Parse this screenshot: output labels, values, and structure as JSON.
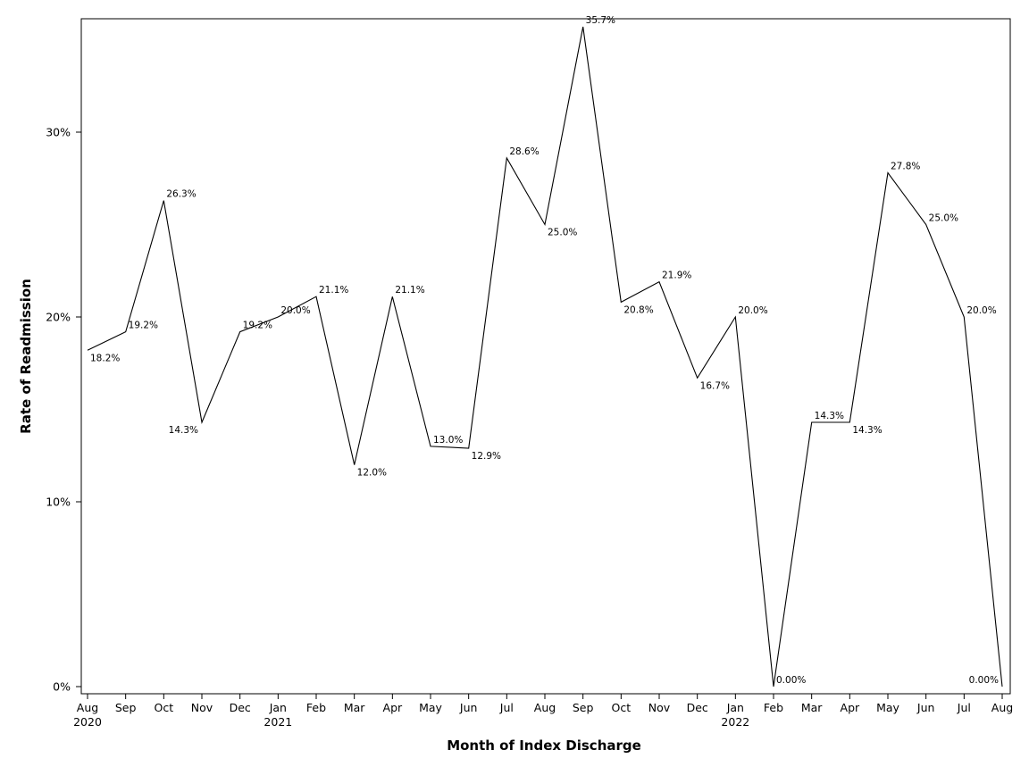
{
  "chart_data": {
    "type": "line",
    "xlabel": "Month of Index Discharge",
    "ylabel": "Rate of Readmission",
    "ylim": [
      0,
      36.5
    ],
    "yticks": [
      {
        "value": 0,
        "label": "0%"
      },
      {
        "value": 10,
        "label": "10%"
      },
      {
        "value": 20,
        "label": "20%"
      },
      {
        "value": 30,
        "label": "30%"
      }
    ],
    "grid": false,
    "legend": "none",
    "categories": [
      {
        "month": "Aug",
        "year": "2020"
      },
      {
        "month": "Sep",
        "year": ""
      },
      {
        "month": "Oct",
        "year": ""
      },
      {
        "month": "Nov",
        "year": ""
      },
      {
        "month": "Dec",
        "year": ""
      },
      {
        "month": "Jan",
        "year": "2021"
      },
      {
        "month": "Feb",
        "year": ""
      },
      {
        "month": "Mar",
        "year": ""
      },
      {
        "month": "Apr",
        "year": ""
      },
      {
        "month": "May",
        "year": ""
      },
      {
        "month": "Jun",
        "year": ""
      },
      {
        "month": "Jul",
        "year": ""
      },
      {
        "month": "Aug",
        "year": ""
      },
      {
        "month": "Sep",
        "year": ""
      },
      {
        "month": "Oct",
        "year": ""
      },
      {
        "month": "Nov",
        "year": ""
      },
      {
        "month": "Dec",
        "year": ""
      },
      {
        "month": "Jan",
        "year": "2022"
      },
      {
        "month": "Feb",
        "year": ""
      },
      {
        "month": "Mar",
        "year": ""
      },
      {
        "month": "Apr",
        "year": ""
      },
      {
        "month": "May",
        "year": ""
      },
      {
        "month": "Jun",
        "year": ""
      },
      {
        "month": "Jul",
        "year": ""
      },
      {
        "month": "Aug",
        "year": ""
      }
    ],
    "series": [
      {
        "values": [
          18.2,
          19.2,
          26.3,
          14.3,
          19.2,
          20.0,
          21.1,
          12.0,
          21.1,
          13.0,
          12.9,
          28.6,
          25.0,
          35.7,
          20.8,
          21.9,
          16.7,
          20.0,
          0.0,
          14.3,
          14.3,
          27.8,
          25.0,
          20.0,
          0.0
        ],
        "labels": [
          "18.2%",
          "19.2%",
          "26.3%",
          "14.3%",
          "19.2%",
          "20.0%",
          "21.1%",
          "12.0%",
          "21.1%",
          "13.0%",
          "12.9%",
          "28.6%",
          "25.0%",
          "35.7%",
          "20.8%",
          "21.9%",
          "16.7%",
          "20.0%",
          "0.00%",
          "14.3%",
          "14.3%",
          "27.8%",
          "25.0%",
          "20.0%",
          "0.00%"
        ],
        "color": "#000000"
      }
    ]
  }
}
